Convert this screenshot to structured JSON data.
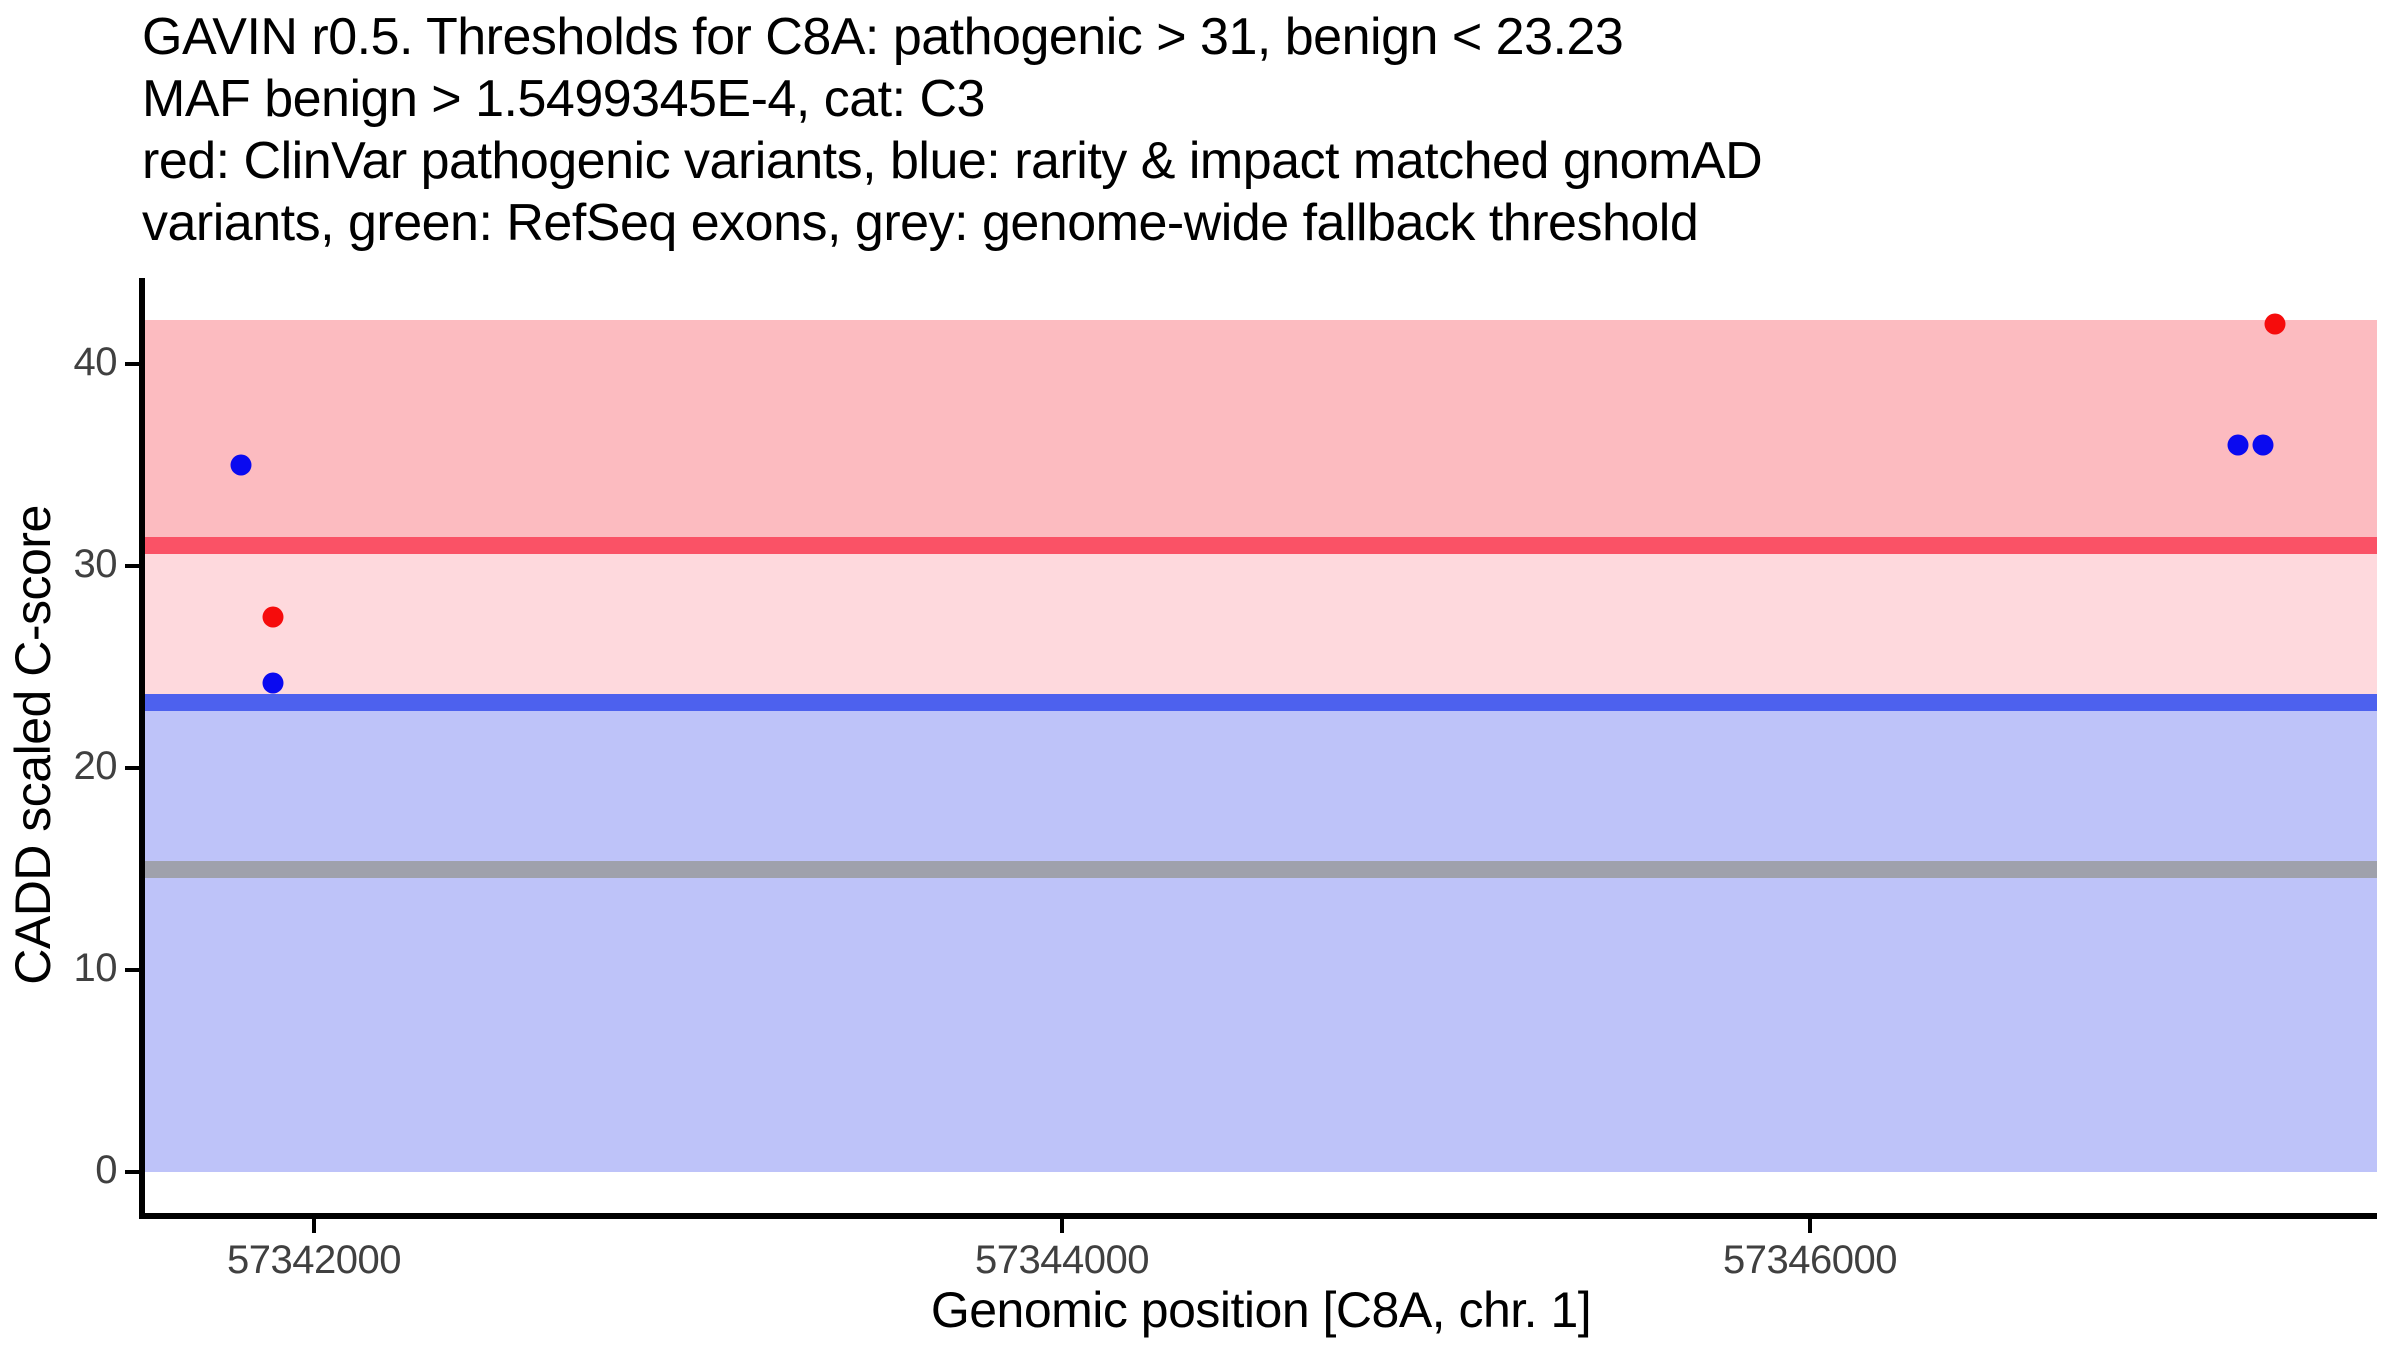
{
  "title": {
    "lines": [
      "GAVIN r0.5. Thresholds for C8A: pathogenic > 31, benign < 23.23",
      "MAF benign > 1.5499345E-4, cat: C3",
      "red: ClinVar pathogenic variants, blue: rarity & impact matched gnomAD",
      "variants, green: RefSeq exons, grey: genome-wide fallback threshold"
    ]
  },
  "y_axis": {
    "label": "CADD scaled C-score",
    "ticks": [
      0,
      10,
      20,
      30,
      40
    ]
  },
  "x_axis": {
    "label": "Genomic position [C8A, chr. 1]",
    "ticks": [
      57342000,
      57344000,
      57346000
    ]
  },
  "chart_data": {
    "type": "scatter",
    "xlabel": "Genomic position [C8A, chr. 1]",
    "ylabel": "CADD scaled C-score",
    "xlim": [
      57341548,
      57347516
    ],
    "ylim": [
      -2.03,
      44.26
    ],
    "grid": false,
    "legend": "none",
    "bands": [
      {
        "name": "pathogenic-zone-band",
        "y0": 31,
        "y1": 42.17,
        "color": "#FCBBC0"
      },
      {
        "name": "intermediate-zone-band",
        "y0": 23.23,
        "y1": 31,
        "color": "#FED9DD"
      },
      {
        "name": "benign-zone-band",
        "y0": 0,
        "y1": 23.23,
        "color": "#BEC3F9"
      }
    ],
    "hlines": [
      {
        "name": "pathogenic-threshold-line",
        "y": 31,
        "color": "#FA5266",
        "thickness_px": 17,
        "meaning": "pathogenic > 31"
      },
      {
        "name": "benign-threshold-line",
        "y": 23.23,
        "color": "#4D61EE",
        "thickness_px": 17,
        "meaning": "benign < 23.23"
      },
      {
        "name": "fallback-threshold-line",
        "y": 15,
        "color": "#9FA1AC",
        "thickness_px": 17,
        "meaning": "genome-wide fallback threshold"
      }
    ],
    "series": [
      {
        "name": "ClinVar pathogenic variants",
        "color": "#F60C0C",
        "point_name": "clinvar-variant-point",
        "points": [
          [
            57341890,
            27.5
          ],
          [
            57347243,
            42
          ]
        ]
      },
      {
        "name": "rarity & impact matched gnomAD variants",
        "color": "#0A0AF0",
        "point_name": "gnomad-variant-point",
        "points": [
          [
            57341805,
            35
          ],
          [
            57341890,
            24.2
          ],
          [
            57347144,
            36
          ],
          [
            57347211,
            36
          ]
        ]
      }
    ]
  }
}
